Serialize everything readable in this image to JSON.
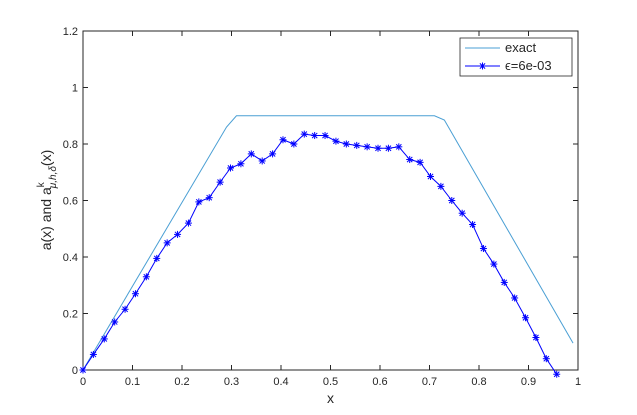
{
  "chart_data": {
    "type": "line",
    "xlabel": "x",
    "ylabel": {
      "prefix": "a(x) and a",
      "superscript": "k",
      "subscript": "μ,h,δ",
      "suffix": "(x)"
    },
    "xlim": [
      0,
      1
    ],
    "ylim": [
      0,
      1.2
    ],
    "xticks": [
      0,
      0.1,
      0.2,
      0.3,
      0.4,
      0.5,
      0.6,
      0.7,
      0.8,
      0.9,
      1
    ],
    "xtick_labels": [
      "0",
      "0.1",
      "0.2",
      "0.3",
      "0.4",
      "0.5",
      "0.6",
      "0.7",
      "0.8",
      "0.9",
      "1"
    ],
    "yticks": [
      0,
      0.2,
      0.4,
      0.6,
      0.8,
      1,
      1.2
    ],
    "ytick_labels": [
      "0",
      "0.2",
      "0.4",
      "0.6",
      "0.8",
      "1",
      "1.2"
    ],
    "grid": false,
    "legend_position": "top-right",
    "series": [
      {
        "name": "exact",
        "color": "#4a9fd4",
        "marker": "none",
        "x": [
          0,
          0.29,
          0.31,
          0.71,
          0.73,
          0.99
        ],
        "y": [
          0,
          0.86,
          0.9,
          0.9,
          0.885,
          0.095
        ]
      },
      {
        "name": "ϵ=6e-03",
        "color": "#0000ff",
        "marker": "asterisk",
        "x": [
          0,
          0.021,
          0.043,
          0.064,
          0.085,
          0.106,
          0.128,
          0.149,
          0.17,
          0.191,
          0.213,
          0.234,
          0.255,
          0.277,
          0.298,
          0.319,
          0.34,
          0.362,
          0.383,
          0.404,
          0.426,
          0.447,
          0.468,
          0.489,
          0.511,
          0.532,
          0.553,
          0.574,
          0.596,
          0.617,
          0.638,
          0.66,
          0.681,
          0.702,
          0.723,
          0.745,
          0.766,
          0.787,
          0.809,
          0.83,
          0.851,
          0.872,
          0.894,
          0.915,
          0.936,
          0.957
        ],
        "y": [
          0,
          0.055,
          0.11,
          0.17,
          0.215,
          0.27,
          0.33,
          0.395,
          0.45,
          0.48,
          0.52,
          0.595,
          0.61,
          0.665,
          0.715,
          0.73,
          0.765,
          0.74,
          0.765,
          0.815,
          0.8,
          0.835,
          0.83,
          0.83,
          0.81,
          0.8,
          0.795,
          0.79,
          0.785,
          0.785,
          0.79,
          0.745,
          0.735,
          0.685,
          0.65,
          0.6,
          0.555,
          0.515,
          0.43,
          0.375,
          0.31,
          0.255,
          0.185,
          0.115,
          0.04,
          -0.015
        ]
      }
    ]
  }
}
